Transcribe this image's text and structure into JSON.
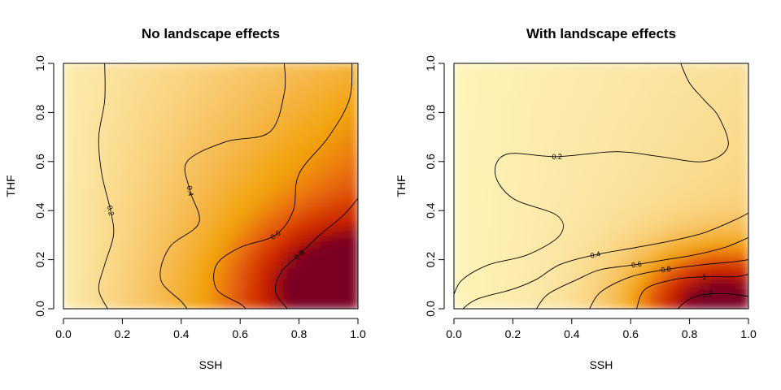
{
  "chart_data": [
    {
      "type": "heatmap",
      "title": "No landscape effects",
      "xlabel": "SSH",
      "ylabel": "THF",
      "xlim": [
        0,
        1
      ],
      "ylim": [
        0,
        1
      ],
      "xticks": [
        "0.0",
        "0.2",
        "0.4",
        "0.6",
        "0.8",
        "1.0"
      ],
      "yticks": [
        "0.0",
        "0.2",
        "0.4",
        "0.6",
        "0.8",
        "1.0"
      ],
      "colormap": [
        "#FFFFC8",
        "#FBE8A8",
        "#F9D27E",
        "#F5B84C",
        "#F2A20A",
        "#E86A08",
        "#D63B05",
        "#C21A00",
        "#7A0020"
      ],
      "surface": {
        "base": 0.1,
        "x_gain": 0.45,
        "y_gain": 0.3,
        "hot_x": 0.93,
        "hot_y": 0.12,
        "hot_peak": 0.45
      },
      "contours": [
        {
          "level": 0.2,
          "label": "0.2",
          "points": [
            [
              0.14,
              1.0
            ],
            [
              0.14,
              0.85
            ],
            [
              0.12,
              0.7
            ],
            [
              0.13,
              0.55
            ],
            [
              0.16,
              0.4
            ],
            [
              0.17,
              0.3
            ],
            [
              0.14,
              0.18
            ],
            [
              0.12,
              0.08
            ],
            [
              0.15,
              0.0
            ]
          ]
        },
        {
          "level": 0.4,
          "label": "0.4",
          "points": [
            [
              0.75,
              1.0
            ],
            [
              0.75,
              0.88
            ],
            [
              0.7,
              0.72
            ],
            [
              0.55,
              0.68
            ],
            [
              0.42,
              0.6
            ],
            [
              0.43,
              0.48
            ],
            [
              0.46,
              0.35
            ],
            [
              0.36,
              0.25
            ],
            [
              0.33,
              0.12
            ],
            [
              0.4,
              0.03
            ],
            [
              0.42,
              0.0
            ]
          ]
        },
        {
          "level": 0.6,
          "label": "0.6",
          "points": [
            [
              0.98,
              1.0
            ],
            [
              0.97,
              0.85
            ],
            [
              0.9,
              0.7
            ],
            [
              0.8,
              0.55
            ],
            [
              0.78,
              0.4
            ],
            [
              0.72,
              0.3
            ],
            [
              0.6,
              0.25
            ],
            [
              0.52,
              0.18
            ],
            [
              0.52,
              0.08
            ],
            [
              0.6,
              0.02
            ],
            [
              0.62,
              0.0
            ]
          ]
        },
        {
          "level": 0.8,
          "label": "0.8",
          "points": [
            [
              1.0,
              0.45
            ],
            [
              0.95,
              0.38
            ],
            [
              0.87,
              0.3
            ],
            [
              0.8,
              0.22
            ],
            [
              0.74,
              0.15
            ],
            [
              0.72,
              0.07
            ],
            [
              0.76,
              0.0
            ]
          ]
        }
      ]
    },
    {
      "type": "heatmap",
      "title": "With landscape effects",
      "xlabel": "SSH",
      "ylabel": "THF",
      "xlim": [
        0,
        1
      ],
      "ylim": [
        0,
        1
      ],
      "xticks": [
        "0.0",
        "0.2",
        "0.4",
        "0.6",
        "0.8",
        "1.0"
      ],
      "yticks": [
        "0.0",
        "0.2",
        "0.4",
        "0.6",
        "0.8",
        "1.0"
      ],
      "colormap": [
        "#FFFFC8",
        "#FBE8A8",
        "#F9D27E",
        "#F5B84C",
        "#F2A20A",
        "#E86A08",
        "#D63B05",
        "#C21A00",
        "#7A0020"
      ],
      "surface": {
        "base": 0.08,
        "x_gain": 0.25,
        "y_gain": 0.05,
        "hot_x": 0.9,
        "hot_y": 0.02,
        "hot_peak": 1.15
      },
      "contours": [
        {
          "level": 0.2,
          "label": "0.2",
          "points": [
            [
              0.0,
              0.06
            ],
            [
              0.03,
              0.12
            ],
            [
              0.12,
              0.18
            ],
            [
              0.25,
              0.22
            ],
            [
              0.36,
              0.3
            ],
            [
              0.35,
              0.38
            ],
            [
              0.2,
              0.45
            ],
            [
              0.14,
              0.55
            ],
            [
              0.18,
              0.63
            ],
            [
              0.35,
              0.62
            ],
            [
              0.55,
              0.64
            ],
            [
              0.7,
              0.62
            ],
            [
              0.85,
              0.6
            ],
            [
              0.93,
              0.66
            ],
            [
              0.9,
              0.78
            ],
            [
              0.85,
              0.85
            ],
            [
              0.8,
              0.92
            ],
            [
              0.77,
              1.0
            ]
          ]
        },
        {
          "level": 0.4,
          "label": "0.4",
          "points": [
            [
              0.03,
              0.0
            ],
            [
              0.08,
              0.04
            ],
            [
              0.2,
              0.08
            ],
            [
              0.28,
              0.12
            ],
            [
              0.36,
              0.18
            ],
            [
              0.48,
              0.22
            ],
            [
              0.62,
              0.25
            ],
            [
              0.75,
              0.28
            ],
            [
              0.85,
              0.31
            ],
            [
              0.95,
              0.36
            ],
            [
              1.0,
              0.39
            ]
          ]
        },
        {
          "level": 0.6,
          "label": "0.6",
          "points": [
            [
              0.28,
              0.0
            ],
            [
              0.32,
              0.06
            ],
            [
              0.42,
              0.12
            ],
            [
              0.5,
              0.16
            ],
            [
              0.62,
              0.18
            ],
            [
              0.72,
              0.2
            ],
            [
              0.82,
              0.22
            ],
            [
              0.92,
              0.25
            ],
            [
              1.0,
              0.29
            ]
          ]
        },
        {
          "level": 0.8,
          "label": "0.8",
          "points": [
            [
              0.46,
              0.0
            ],
            [
              0.5,
              0.07
            ],
            [
              0.6,
              0.13
            ],
            [
              0.72,
              0.16
            ],
            [
              0.85,
              0.18
            ],
            [
              0.94,
              0.19
            ],
            [
              1.0,
              0.2
            ]
          ]
        },
        {
          "level": 1.0,
          "label": "1",
          "points": [
            [
              0.62,
              0.0
            ],
            [
              0.65,
              0.08
            ],
            [
              0.75,
              0.12
            ],
            [
              0.85,
              0.13
            ],
            [
              0.95,
              0.13
            ],
            [
              1.0,
              0.14
            ]
          ]
        },
        {
          "level": 1.2,
          "label": "1.2",
          "points": [
            [
              0.76,
              0.0
            ],
            [
              0.8,
              0.04
            ],
            [
              0.86,
              0.06
            ],
            [
              0.94,
              0.06
            ],
            [
              1.0,
              0.05
            ]
          ]
        }
      ]
    }
  ]
}
